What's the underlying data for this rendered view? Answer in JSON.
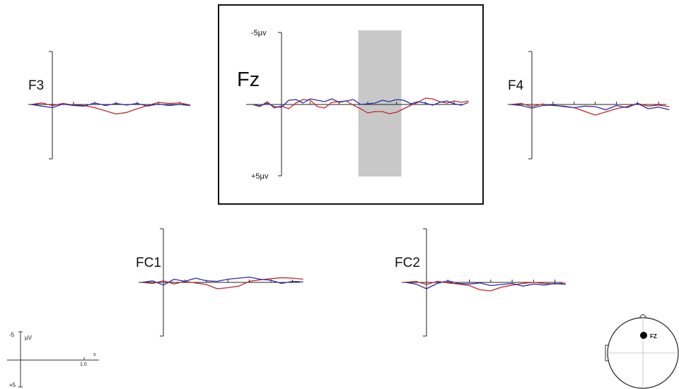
{
  "colors": {
    "condition_a": "#c0282d",
    "condition_b": "#2b2fa8",
    "window": "#c8c8c8",
    "axis": "#222222"
  },
  "channels": [
    {
      "name": "F3"
    },
    {
      "name": "Fz",
      "highlighted": true,
      "ytop": "-5µv",
      "ybottom": "+5µv"
    },
    {
      "name": "F4"
    },
    {
      "name": "FC1"
    },
    {
      "name": "FC2"
    }
  ],
  "scale_legend": {
    "top": "-5",
    "bottom": "+5",
    "unit": "µV",
    "time_unit": "s",
    "time_tick": "1.0"
  },
  "head_map": {
    "electrode_label": "FZ"
  },
  "chart_data": {
    "type": "line",
    "xlabel": "s",
    "ylabel": "µV",
    "ylim": [
      5,
      -5
    ],
    "xlim": [
      -0.2,
      1.3
    ],
    "analysis_window_s": [
      0.58,
      0.88
    ],
    "series": [
      {
        "channel": "Fz",
        "condition": "red",
        "x": [
          -0.2,
          -0.15,
          -0.1,
          -0.05,
          0.0,
          0.05,
          0.1,
          0.15,
          0.2,
          0.25,
          0.3,
          0.35,
          0.4,
          0.45,
          0.5,
          0.55,
          0.6,
          0.65,
          0.7,
          0.75,
          0.8,
          0.85,
          0.9,
          0.95,
          1.0,
          1.05,
          1.1,
          1.15,
          1.2,
          1.25,
          1.3
        ],
        "y": [
          0,
          0.3,
          -0.4,
          0.5,
          0.2,
          0.6,
          -0.2,
          -0.7,
          -0.6,
          0.3,
          0.5,
          -0.3,
          -0.4,
          -0.5,
          0.1,
          0.6,
          1.2,
          1.0,
          1.0,
          1.3,
          1.1,
          0.6,
          0.1,
          -0.3,
          -0.9,
          -0.8,
          -0.4,
          -0.2,
          -0.5,
          -0.3,
          -0.5
        ]
      },
      {
        "channel": "Fz",
        "condition": "blue",
        "x": [
          -0.2,
          -0.15,
          -0.1,
          -0.05,
          0.0,
          0.05,
          0.1,
          0.15,
          0.2,
          0.25,
          0.3,
          0.35,
          0.4,
          0.45,
          0.5,
          0.55,
          0.6,
          0.65,
          0.7,
          0.75,
          0.8,
          0.85,
          0.9,
          0.95,
          1.0,
          1.05,
          1.1,
          1.15,
          1.2,
          1.25,
          1.3
        ],
        "y": [
          0,
          0.2,
          -0.2,
          0.3,
          0.4,
          -0.6,
          -0.7,
          -0.2,
          -0.8,
          -0.6,
          -0.4,
          -0.8,
          -0.3,
          -0.5,
          -0.7,
          0.0,
          -0.1,
          -0.2,
          -0.6,
          -0.4,
          -0.7,
          -0.6,
          -0.1,
          -0.4,
          -0.2,
          0.1,
          -0.3,
          -0.5,
          -0.1,
          0.1,
          -0.3
        ]
      },
      {
        "channel": "F3",
        "condition": "red",
        "x": [
          -0.2,
          -0.1,
          0.0,
          0.1,
          0.2,
          0.3,
          0.4,
          0.5,
          0.6,
          0.7,
          0.8,
          0.9,
          1.0,
          1.1,
          1.2,
          1.3
        ],
        "y": [
          0,
          -0.3,
          0.2,
          -0.2,
          0.1,
          0.2,
          0.6,
          1.2,
          1.8,
          1.5,
          0.8,
          0.2,
          -0.4,
          -0.2,
          -0.3,
          0.1
        ]
      },
      {
        "channel": "F3",
        "condition": "blue",
        "x": [
          -0.2,
          -0.1,
          0.0,
          0.1,
          0.2,
          0.3,
          0.4,
          0.5,
          0.6,
          0.7,
          0.8,
          0.9,
          1.0,
          1.1,
          1.2,
          1.3
        ],
        "y": [
          0,
          0.3,
          0.6,
          -0.1,
          0.2,
          0.3,
          -0.3,
          0.2,
          -0.2,
          0.1,
          -0.2,
          0.3,
          -0.1,
          0.2,
          0.0,
          0.2
        ]
      },
      {
        "channel": "F4",
        "condition": "red",
        "x": [
          -0.2,
          -0.1,
          0.0,
          0.1,
          0.2,
          0.3,
          0.4,
          0.5,
          0.6,
          0.7,
          0.8,
          0.9,
          1.0,
          1.1,
          1.2,
          1.3
        ],
        "y": [
          0,
          -0.2,
          0.4,
          -0.1,
          0.2,
          0.3,
          0.6,
          1.3,
          2.0,
          1.4,
          0.8,
          0.4,
          -0.2,
          0.3,
          0.1,
          0.4
        ]
      },
      {
        "channel": "F4",
        "condition": "blue",
        "x": [
          -0.2,
          -0.1,
          0.0,
          0.1,
          0.2,
          0.3,
          0.4,
          0.5,
          0.6,
          0.7,
          0.8,
          0.9,
          1.0,
          1.1,
          1.2,
          1.3
        ],
        "y": [
          0,
          0.2,
          0.7,
          0.2,
          0.1,
          0.4,
          0.6,
          0.3,
          0.4,
          1.0,
          0.2,
          0.6,
          -0.2,
          0.8,
          0.5,
          1.0
        ]
      },
      {
        "channel": "FC1",
        "condition": "red",
        "x": [
          -0.2,
          -0.1,
          0.0,
          0.1,
          0.2,
          0.3,
          0.4,
          0.5,
          0.6,
          0.7,
          0.8,
          0.9,
          1.0,
          1.1,
          1.2,
          1.3
        ],
        "y": [
          0,
          0.2,
          -0.3,
          0.3,
          -0.2,
          0.1,
          0.4,
          1.2,
          1.0,
          0.7,
          -0.2,
          -0.5,
          -0.7,
          -0.9,
          -0.8,
          -0.6
        ]
      },
      {
        "channel": "FC1",
        "condition": "blue",
        "x": [
          -0.2,
          -0.1,
          0.0,
          0.1,
          0.2,
          0.3,
          0.4,
          0.5,
          0.6,
          0.7,
          0.8,
          0.9,
          1.0,
          1.1,
          1.2,
          1.3
        ],
        "y": [
          0,
          -0.3,
          0.5,
          -0.6,
          -0.2,
          -0.8,
          -0.3,
          -0.2,
          -0.6,
          -0.8,
          -1.0,
          -0.6,
          -0.4,
          0.2,
          -0.2,
          -0.1
        ]
      },
      {
        "channel": "FC2",
        "condition": "red",
        "x": [
          -0.2,
          -0.1,
          0.0,
          0.1,
          0.2,
          0.3,
          0.4,
          0.5,
          0.6,
          0.7,
          0.8,
          0.9,
          1.0,
          1.1,
          1.2,
          1.3
        ],
        "y": [
          0,
          -0.2,
          0.4,
          -0.2,
          0.1,
          0.3,
          0.6,
          1.4,
          1.6,
          0.9,
          0.5,
          0.2,
          0.0,
          0.2,
          0.3,
          0.1
        ]
      },
      {
        "channel": "FC2",
        "condition": "blue",
        "x": [
          -0.2,
          -0.1,
          0.0,
          0.1,
          0.2,
          0.3,
          0.4,
          0.5,
          0.6,
          0.7,
          0.8,
          0.9,
          1.0,
          1.1,
          1.2,
          1.3
        ],
        "y": [
          0,
          0.3,
          1.2,
          0.2,
          -0.3,
          0.2,
          0.3,
          0.1,
          0.6,
          0.4,
          0.2,
          0.7,
          0.3,
          0.5,
          0.2,
          0.4
        ]
      }
    ]
  }
}
